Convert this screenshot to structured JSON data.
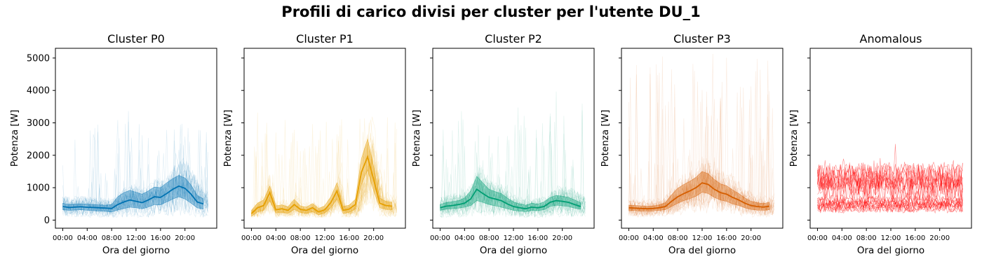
{
  "figure": {
    "title": "Profili di carico divisi per cluster per l'utente DU_1"
  },
  "chart_data": [
    {
      "type": "line",
      "title": "Cluster P0",
      "xlabel": "Ora del giorno",
      "ylabel": "Potenza [W]",
      "color": "#0072b2",
      "x_ticks": [
        "00:00",
        "04:00",
        "08:00",
        "12:00",
        "16:00",
        "20:00"
      ],
      "x_tick_hours": [
        0,
        4,
        8,
        12,
        16,
        20
      ],
      "xlim": [
        -1.2,
        25.2
      ],
      "ylim": [
        -250,
        5300
      ],
      "y_ticks": [
        0,
        1000,
        2000,
        3000,
        4000,
        5000
      ],
      "x": [
        0,
        1,
        2,
        3,
        4,
        5,
        6,
        7,
        8,
        9,
        10,
        11,
        12,
        13,
        14,
        15,
        16,
        17,
        18,
        19,
        20,
        21,
        22,
        23
      ],
      "series": [
        {
          "values": [
            420,
            390,
            400,
            410,
            395,
            390,
            380,
            370,
            360,
            480,
            560,
            620,
            580,
            540,
            620,
            720,
            700,
            820,
            950,
            1050,
            980,
            800,
            560,
            500
          ]
        }
      ],
      "band": {
        "lower": [
          320,
          300,
          310,
          320,
          300,
          290,
          280,
          270,
          250,
          310,
          360,
          400,
          380,
          350,
          400,
          480,
          470,
          560,
          650,
          720,
          650,
          520,
          380,
          340
        ],
        "upper": [
          520,
          480,
          490,
          500,
          490,
          480,
          470,
          460,
          480,
          720,
          850,
          920,
          860,
          800,
          900,
          1020,
          1000,
          1150,
          1280,
          1380,
          1300,
          1080,
          760,
          660
        ]
      },
      "individual_peak": 3100
    },
    {
      "type": "line",
      "title": "Cluster P1",
      "xlabel": "Ora del giorno",
      "ylabel": "Potenza [W]",
      "color": "#e69f00",
      "x_ticks": [
        "00:00",
        "04:00",
        "08:00",
        "12:00",
        "16:00",
        "20:00"
      ],
      "x_tick_hours": [
        0,
        4,
        8,
        12,
        16,
        20
      ],
      "xlim": [
        -1.2,
        25.2
      ],
      "ylim": [
        -250,
        5300
      ],
      "y_ticks": [
        0,
        1000,
        2000,
        3000,
        4000,
        5000
      ],
      "x": [
        0,
        1,
        2,
        3,
        4,
        5,
        6,
        7,
        8,
        9,
        10,
        11,
        12,
        13,
        14,
        15,
        16,
        17,
        18,
        19,
        20,
        21,
        22,
        23
      ],
      "series": [
        {
          "values": [
            200,
            380,
            450,
            850,
            320,
            350,
            300,
            480,
            330,
            300,
            380,
            250,
            320,
            540,
            900,
            300,
            340,
            480,
            1480,
            1950,
            1250,
            520,
            450,
            430
          ]
        }
      ],
      "band": {
        "lower": [
          120,
          250,
          300,
          600,
          220,
          240,
          210,
          330,
          230,
          210,
          260,
          160,
          220,
          380,
          650,
          200,
          240,
          340,
          1100,
          1550,
          900,
          380,
          330,
          320
        ],
        "upper": [
          300,
          520,
          620,
          1050,
          440,
          470,
          410,
          640,
          440,
          400,
          510,
          360,
          440,
          720,
          1150,
          420,
          460,
          640,
          1900,
          2500,
          1650,
          680,
          580,
          550
        ]
      },
      "individual_peak": 3200
    },
    {
      "type": "line",
      "title": "Cluster P2",
      "xlabel": "Ora del giorno",
      "ylabel": "Potenza [W]",
      "color": "#009e73",
      "x_ticks": [
        "00:00",
        "04:00",
        "08:00",
        "12:00",
        "16:00",
        "20:00"
      ],
      "x_tick_hours": [
        0,
        4,
        8,
        12,
        16,
        20
      ],
      "xlim": [
        -1.2,
        25.2
      ],
      "ylim": [
        -250,
        5300
      ],
      "y_ticks": [
        0,
        1000,
        2000,
        3000,
        4000,
        5000
      ],
      "x": [
        0,
        1,
        2,
        3,
        4,
        5,
        6,
        7,
        8,
        9,
        10,
        11,
        12,
        13,
        14,
        15,
        16,
        17,
        18,
        19,
        20,
        21,
        22,
        23
      ],
      "series": [
        {
          "values": [
            380,
            430,
            450,
            480,
            520,
            650,
            950,
            820,
            700,
            650,
            600,
            500,
            420,
            380,
            350,
            400,
            380,
            420,
            550,
            600,
            580,
            550,
            480,
            420
          ]
        }
      ],
      "band": {
        "lower": [
          300,
          340,
          350,
          370,
          400,
          450,
          600,
          550,
          480,
          440,
          400,
          350,
          300,
          280,
          260,
          300,
          290,
          320,
          420,
          460,
          440,
          420,
          370,
          330
        ],
        "upper": [
          480,
          540,
          570,
          600,
          680,
          900,
          1350,
          1150,
          950,
          880,
          820,
          680,
          560,
          500,
          460,
          520,
          490,
          560,
          700,
          760,
          740,
          700,
          620,
          540
        ]
      },
      "individual_peak": 3500
    },
    {
      "type": "line",
      "title": "Cluster P3",
      "xlabel": "Ora del giorno",
      "ylabel": "Potenza [W]",
      "color": "#d55e00",
      "x_ticks": [
        "00:00",
        "04:00",
        "08:00",
        "12:00",
        "16:00",
        "20:00"
      ],
      "x_tick_hours": [
        0,
        4,
        8,
        12,
        16,
        20
      ],
      "xlim": [
        -1.2,
        25.2
      ],
      "ylim": [
        -250,
        5300
      ],
      "y_ticks": [
        0,
        1000,
        2000,
        3000,
        4000,
        5000
      ],
      "x": [
        0,
        1,
        2,
        3,
        4,
        5,
        6,
        7,
        8,
        9,
        10,
        11,
        12,
        13,
        14,
        15,
        16,
        17,
        18,
        19,
        20,
        21,
        22,
        23
      ],
      "series": [
        {
          "values": [
            380,
            370,
            360,
            350,
            360,
            380,
            420,
            580,
            720,
            820,
            900,
            1000,
            1150,
            1100,
            950,
            850,
            800,
            700,
            620,
            520,
            450,
            420,
            400,
            430
          ]
        }
      ],
      "band": {
        "lower": [
          300,
          290,
          280,
          280,
          280,
          300,
          320,
          420,
          520,
          600,
          660,
          740,
          860,
          820,
          700,
          620,
          580,
          500,
          450,
          380,
          330,
          310,
          300,
          320
        ],
        "upper": [
          460,
          450,
          440,
          430,
          440,
          470,
          540,
          780,
          980,
          1100,
          1200,
          1320,
          1500,
          1430,
          1250,
          1120,
          1060,
          930,
          820,
          680,
          580,
          540,
          510,
          550
        ]
      },
      "individual_peak": 5000
    },
    {
      "type": "line",
      "title": "Anomalous",
      "xlabel": "Ora del giorno",
      "ylabel": "Potenza [W]",
      "color": "#ff0000",
      "x_ticks": [
        "00:00",
        "04:00",
        "08:00",
        "12:00",
        "16:00",
        "20:00"
      ],
      "x_tick_hours": [
        0,
        4,
        8,
        12,
        16,
        20
      ],
      "xlim": [
        -1.2,
        25.2
      ],
      "ylim": [
        -250,
        5300
      ],
      "y_ticks": [
        0,
        1000,
        2000,
        3000,
        4000,
        5000
      ],
      "individual_peak": 2400
    }
  ]
}
